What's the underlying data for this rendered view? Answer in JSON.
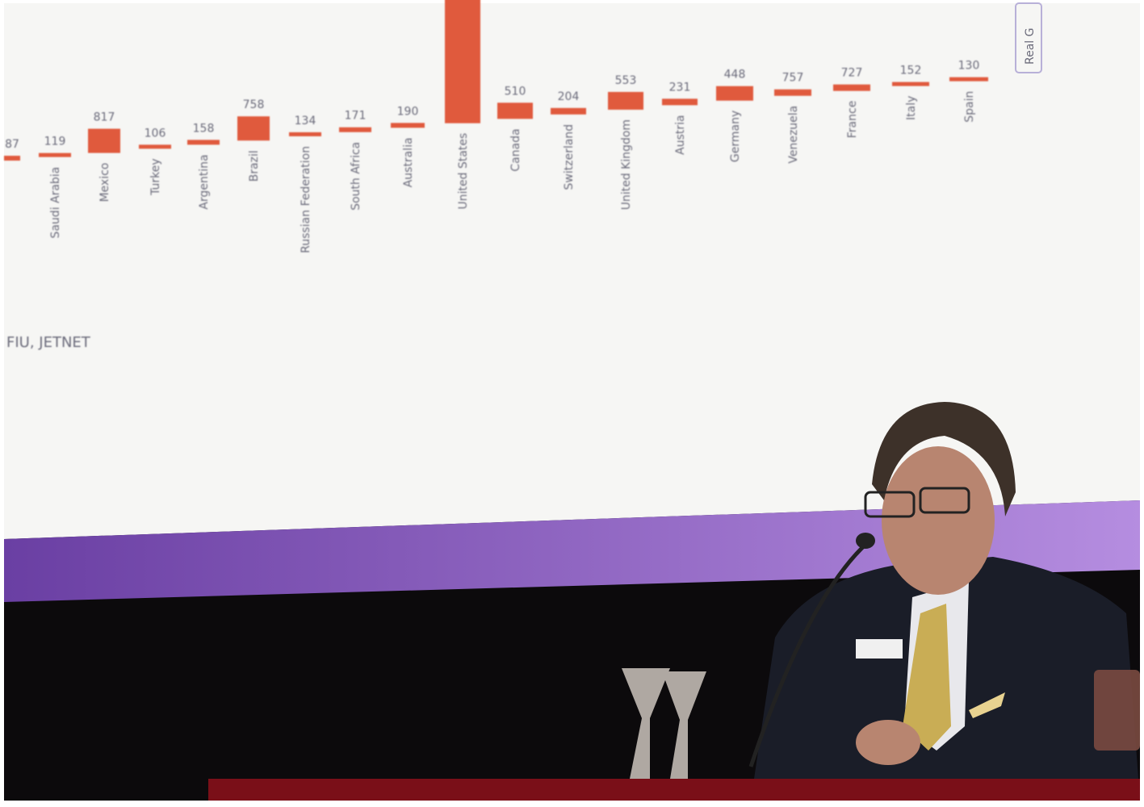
{
  "screen": {
    "bars": [
      {
        "label": "87"
      },
      {
        "label": "119",
        "country": "Saudi Arabia"
      },
      {
        "label": "817",
        "country": "Mexico"
      },
      {
        "label": "106",
        "country": "Turkey"
      },
      {
        "label": "158",
        "country": "Argentina"
      },
      {
        "label": "758",
        "country": "Brazil"
      },
      {
        "label": "134",
        "country": "Russian Federation"
      },
      {
        "label": "171",
        "country": "South Africa"
      },
      {
        "label": "190",
        "country": "Australia"
      },
      {
        "country": "United States"
      },
      {
        "label": "510",
        "country": "Canada"
      },
      {
        "label": "204",
        "country": "Switzerland"
      },
      {
        "label": "553",
        "country": "United Kingdom"
      },
      {
        "label": "231",
        "country": "Austria"
      },
      {
        "label": "448",
        "country": "Germany"
      },
      {
        "label": "757",
        "country": "Venezuela"
      },
      {
        "label": "727",
        "country": "France"
      },
      {
        "label": "152",
        "country": "Italy"
      },
      {
        "label": "130",
        "country": "Spain"
      }
    ],
    "source": "FIU, JETNET",
    "side_tab": "Real G"
  }
}
